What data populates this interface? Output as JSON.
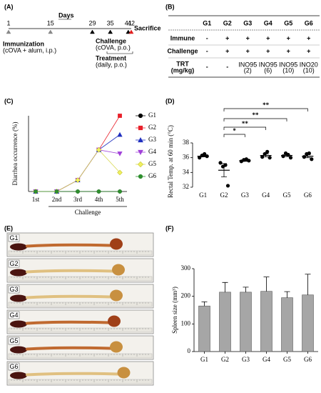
{
  "panel_labels": [
    "(A)",
    "(B)",
    "(C)",
    "(D)",
    "(E)",
    "(F)"
  ],
  "timeline": {
    "title": "Days",
    "days": [
      1,
      15,
      29,
      35,
      41,
      42
    ],
    "events": [
      {
        "name": "Immunization",
        "detail": "(cOVA + alum, i.p.)"
      },
      {
        "name": "Challenge",
        "detail": "(cOVA, p.o.)"
      },
      {
        "name": "Treatment",
        "detail": "(daily, p.o.)"
      },
      {
        "name": "Sacrifice"
      }
    ]
  },
  "treatment_table": {
    "columns": [
      "G1",
      "G2",
      "G3",
      "G4",
      "G5",
      "G6"
    ],
    "rows": [
      {
        "label": "Immune",
        "cells": [
          "-",
          "+",
          "+",
          "+",
          "+",
          "+"
        ]
      },
      {
        "label": "Challenge",
        "cells": [
          "-",
          "+",
          "+",
          "+",
          "+",
          "+"
        ]
      },
      {
        "label": "TRT",
        "unit": "(mg/kg)",
        "cells": [
          "-",
          "-",
          {
            "name": "INO95",
            "dose": "(2)"
          },
          {
            "name": "INO95",
            "dose": "(6)"
          },
          {
            "name": "INO95",
            "dose": "(10)"
          },
          {
            "name": "INO20",
            "dose": "(10)"
          }
        ]
      }
    ]
  },
  "chart_data": [
    {
      "type": "line",
      "ylabel": "Diarrhea occurrence (%)",
      "xlabel": "Challenge",
      "categories": [
        "1st",
        "2nd",
        "3rd",
        "4th",
        "5th"
      ],
      "ylim": [
        0,
        100
      ],
      "series": [
        {
          "name": "G1",
          "color": "#000000",
          "marker": "circle",
          "values": [
            0,
            0,
            0,
            0,
            0
          ]
        },
        {
          "name": "G2",
          "color": "#e8202a",
          "marker": "square",
          "values": [
            0,
            0,
            15,
            55,
            100
          ]
        },
        {
          "name": "G3",
          "color": "#1f2fbf",
          "marker": "triangle",
          "values": [
            0,
            0,
            15,
            55,
            75
          ]
        },
        {
          "name": "G4",
          "color": "#a040d8",
          "marker": "triangle-down",
          "values": [
            0,
            0,
            15,
            55,
            50
          ]
        },
        {
          "name": "G5",
          "color": "#f0f060",
          "marker": "diamond",
          "values": [
            0,
            0,
            15,
            55,
            25
          ]
        },
        {
          "name": "G6",
          "color": "#2f8f2f",
          "marker": "circle",
          "values": [
            0,
            0,
            0,
            0,
            0
          ]
        }
      ]
    },
    {
      "type": "dot",
      "ylabel": "Rectal Temp. at 60 min (°C)",
      "categories": [
        "G1",
        "G2",
        "G3",
        "G4",
        "G5",
        "G6"
      ],
      "ylim": [
        32,
        38
      ],
      "yticks": [
        32,
        34,
        36,
        38
      ],
      "points": [
        [
          36.0,
          36.3,
          36.5,
          36.2
        ],
        [
          35.3,
          34.8,
          35.0,
          32.2
        ],
        [
          35.5,
          35.7,
          35.8,
          35.6
        ],
        [
          36.1,
          36.5,
          36.8,
          36.0
        ],
        [
          36.2,
          36.6,
          36.4,
          36.0
        ],
        [
          36.1,
          36.5,
          36.6,
          35.8
        ]
      ],
      "means": [
        36.2,
        34.3,
        35.6,
        36.3,
        36.3,
        36.2
      ],
      "errors": [
        0.1,
        0.9,
        0.1,
        0.2,
        0.15,
        0.2
      ],
      "annotations": [
        {
          "text": "**",
          "from": "G2",
          "to": "G6"
        },
        {
          "text": "**",
          "from": "G2",
          "to": "G5"
        },
        {
          "text": "**",
          "from": "G2",
          "to": "G4"
        },
        {
          "text": "*",
          "from": "G2",
          "to": "G3"
        }
      ]
    },
    {
      "type": "bar",
      "ylabel": "Spleen size (mm³)",
      "categories": [
        "G1",
        "G2",
        "G3",
        "G4",
        "G5",
        "G6"
      ],
      "values": [
        165,
        215,
        215,
        218,
        195,
        205
      ],
      "errors": [
        15,
        35,
        18,
        52,
        22,
        75
      ],
      "color": "#a6a6a6",
      "ylim": [
        0,
        300
      ],
      "yticks": [
        0,
        100,
        200,
        300
      ]
    }
  ],
  "photos": {
    "labels": [
      "G1",
      "G2",
      "G3",
      "G4",
      "G5",
      "G6"
    ]
  }
}
